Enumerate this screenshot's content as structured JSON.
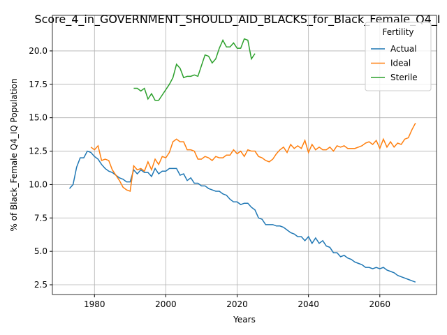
{
  "chart_data": {
    "type": "line",
    "title": "Score_4_in_GOVERNMENT_SHOULD_AID_BLACKS_for_Black_Female_Q4_I",
    "xlabel": "Years",
    "ylabel": "% of Black_Female Q4_IQ Population",
    "x": [
      1973,
      1974,
      1975,
      1976,
      1977,
      1978,
      1979,
      1980,
      1981,
      1982,
      1983,
      1984,
      1985,
      1986,
      1987,
      1988,
      1989,
      1990,
      1991,
      1992,
      1993,
      1994,
      1995,
      1996,
      1997,
      1998,
      1999,
      2000,
      2001,
      2002,
      2003,
      2004,
      2005,
      2006,
      2007,
      2008,
      2009,
      2010,
      2011,
      2012,
      2013,
      2014,
      2015,
      2016,
      2017,
      2018,
      2019,
      2020,
      2021,
      2022,
      2023,
      2024,
      2025,
      2026,
      2027,
      2028,
      2029,
      2030,
      2031,
      2032,
      2033,
      2034,
      2035,
      2036,
      2037,
      2038,
      2039,
      2040,
      2041,
      2042,
      2043,
      2044,
      2045,
      2046,
      2047,
      2048,
      2049,
      2050,
      2051,
      2052,
      2053,
      2054,
      2055,
      2056,
      2057,
      2058,
      2059,
      2060,
      2061,
      2062,
      2063,
      2064,
      2065,
      2066,
      2067,
      2068,
      2069,
      2070
    ],
    "series": [
      {
        "name": "Actual",
        "color": "#1f77b4",
        "values": [
          9.7,
          10.0,
          11.3,
          12.0,
          12.0,
          12.5,
          12.4,
          12.1,
          11.9,
          11.5,
          11.2,
          11.0,
          10.9,
          10.7,
          10.5,
          10.4,
          10.2,
          10.2,
          11.1,
          10.8,
          11.1,
          10.9,
          10.9,
          10.6,
          11.2,
          10.8,
          11.0,
          11.0,
          11.2,
          11.2,
          11.2,
          10.7,
          10.8,
          10.3,
          10.5,
          10.1,
          10.1,
          9.9,
          9.9,
          9.7,
          9.6,
          9.5,
          9.5,
          9.3,
          9.2,
          8.9,
          8.7,
          8.7,
          8.5,
          8.6,
          8.6,
          8.3,
          8.1,
          7.5,
          7.4,
          7.0,
          7.0,
          7.0,
          6.9,
          6.9,
          6.8,
          6.6,
          6.4,
          6.3,
          6.1,
          6.1,
          5.8,
          6.1,
          5.6,
          6.0,
          5.6,
          5.8,
          5.4,
          5.3,
          4.9,
          4.9,
          4.6,
          4.7,
          4.5,
          4.4,
          4.2,
          4.1,
          4.0,
          3.8,
          3.8,
          3.7,
          3.8,
          3.7,
          3.8,
          3.6,
          3.5,
          3.4,
          3.2,
          3.1,
          3.0,
          2.9,
          2.8,
          2.7
        ]
      },
      {
        "name": "Ideal",
        "color": "#ff7f0e",
        "values": [
          null,
          null,
          null,
          null,
          null,
          null,
          12.8,
          12.6,
          12.9,
          11.8,
          11.9,
          11.8,
          11.1,
          10.7,
          10.3,
          9.8,
          9.6,
          9.5,
          11.4,
          11.1,
          11.2,
          11.0,
          11.7,
          11.1,
          11.9,
          11.5,
          12.1,
          12.0,
          12.4,
          13.2,
          13.4,
          13.2,
          13.2,
          12.6,
          12.6,
          12.5,
          11.9,
          11.9,
          12.1,
          12.0,
          11.8,
          12.1,
          12.0,
          12.0,
          12.2,
          12.2,
          12.6,
          12.3,
          12.5,
          12.1,
          12.6,
          12.5,
          12.5,
          12.1,
          12.0,
          11.8,
          11.7,
          11.9,
          12.3,
          12.6,
          12.8,
          12.4,
          13.0,
          12.7,
          12.9,
          12.7,
          13.3,
          12.4,
          13.0,
          12.6,
          12.8,
          12.6,
          12.6,
          12.8,
          12.5,
          12.9,
          12.8,
          12.9,
          12.7,
          12.7,
          12.7,
          12.8,
          12.9,
          13.1,
          13.2,
          13.0,
          13.3,
          12.7,
          13.4,
          12.8,
          13.2,
          12.8,
          13.1,
          13.0,
          13.4,
          13.5,
          14.1,
          14.6
        ]
      },
      {
        "name": "Sterile",
        "color": "#2ca02c",
        "values": [
          null,
          null,
          null,
          null,
          null,
          null,
          null,
          null,
          null,
          null,
          null,
          null,
          null,
          null,
          null,
          null,
          null,
          null,
          17.2,
          17.2,
          17.0,
          17.2,
          16.4,
          16.8,
          16.3,
          16.3,
          16.7,
          17.1,
          17.5,
          18.0,
          19.0,
          18.7,
          18.0,
          18.1,
          18.1,
          18.2,
          18.1,
          18.9,
          19.7,
          19.6,
          19.1,
          19.4,
          20.2,
          20.8,
          20.3,
          20.3,
          20.6,
          20.2,
          20.2,
          20.9,
          20.8,
          19.4,
          19.8,
          null,
          null,
          null,
          null,
          null,
          null,
          null,
          null,
          null,
          null,
          null,
          null,
          null,
          null,
          null,
          null,
          null,
          null,
          null,
          null,
          null,
          null,
          null,
          null,
          null,
          null,
          null,
          null,
          null,
          null,
          null,
          null,
          null,
          null,
          null,
          null,
          null,
          null,
          null,
          null,
          null,
          null,
          null,
          null,
          null
        ]
      }
    ],
    "xlim": [
      1968.2,
      2075.9
    ],
    "ylim": [
      1.77,
      22.66
    ],
    "xticks": [
      1980,
      2000,
      2020,
      2040,
      2060
    ],
    "yticks": [
      2.5,
      {
        "value": 5,
        "label": "5.0"
      },
      7.5,
      {
        "value": 10,
        "label": "10.0"
      },
      12.5,
      {
        "value": 15,
        "label": "15.0"
      },
      17.5,
      {
        "value": 20,
        "label": "20.0"
      }
    ],
    "grid": true,
    "legend_title": "Fertility",
    "legend": "upper right"
  }
}
